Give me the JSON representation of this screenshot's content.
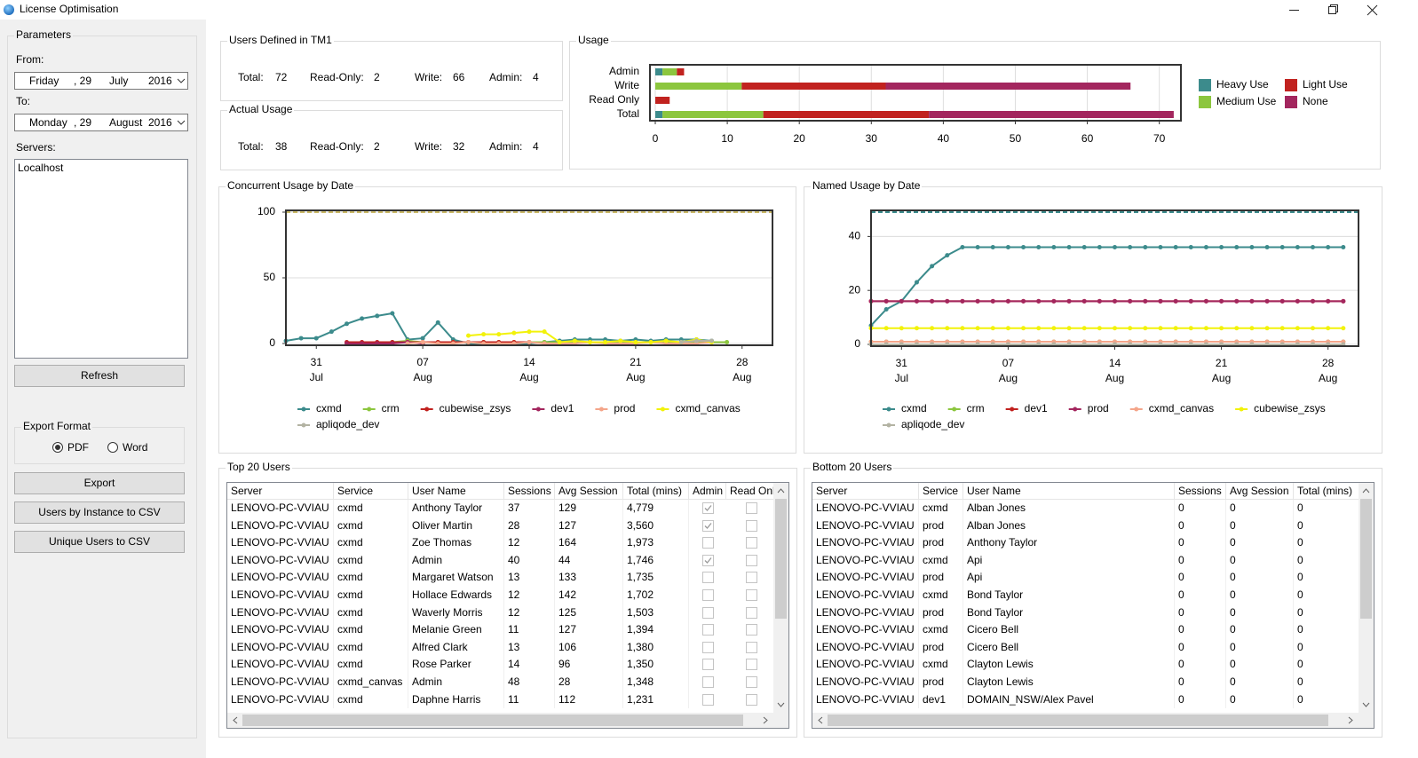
{
  "window": {
    "title": "License Optimisation"
  },
  "parameters": {
    "title": "Parameters",
    "from_label": "From:",
    "from": {
      "weekday": "Friday",
      "day": ", 29",
      "month": "July",
      "year": "2016"
    },
    "to_label": "To:",
    "to": {
      "weekday": "Monday",
      "day": ", 29",
      "month": "August",
      "year": "2016"
    },
    "servers_label": "Servers:",
    "servers": [
      "Localhost"
    ],
    "refresh": "Refresh",
    "export_format": {
      "title": "Export Format",
      "options": [
        "PDF",
        "Word"
      ],
      "selected": "PDF"
    },
    "buttons": [
      "Export",
      "Users by Instance to CSV",
      "Unique Users to CSV"
    ]
  },
  "users_defined": {
    "title": "Users Defined in TM1",
    "fields": [
      {
        "label": "Total:",
        "value": 72
      },
      {
        "label": "Read-Only:",
        "value": 2
      },
      {
        "label": "Write:",
        "value": 66
      },
      {
        "label": "Admin:",
        "value": 4
      }
    ]
  },
  "actual_usage": {
    "title": "Actual Usage",
    "fields": [
      {
        "label": "Total:",
        "value": 38
      },
      {
        "label": "Read-Only:",
        "value": 2
      },
      {
        "label": "Write:",
        "value": 32
      },
      {
        "label": "Admin:",
        "value": 4
      }
    ]
  },
  "chart_data": [
    {
      "type": "bar",
      "orientation": "horizontal",
      "stacked": true,
      "title": "Usage",
      "categories": [
        "Admin",
        "Write",
        "Read Only",
        "Total"
      ],
      "series": [
        {
          "name": "Heavy Use",
          "color": "#3c8b8c",
          "values": [
            1,
            0,
            0,
            1
          ]
        },
        {
          "name": "Medium Use",
          "color": "#8cc63e",
          "values": [
            2,
            12,
            0,
            14
          ]
        },
        {
          "name": "Light Use",
          "color": "#c1221f",
          "values": [
            1,
            20,
            2,
            23
          ]
        },
        {
          "name": "None",
          "color": "#a3265e",
          "values": [
            0,
            34,
            0,
            34
          ]
        }
      ],
      "xlim": [
        0,
        73
      ],
      "xticks": [
        0,
        10,
        20,
        30,
        40,
        50,
        60,
        70
      ],
      "grid": true,
      "legend": "right"
    },
    {
      "type": "line",
      "title": "Concurrent Usage by Date",
      "x": [
        "29 Jul",
        "30 Jul",
        "31 Jul",
        "01 Aug",
        "02 Aug",
        "03 Aug",
        "04 Aug",
        "05 Aug",
        "06 Aug",
        "07 Aug",
        "08 Aug",
        "09 Aug",
        "10 Aug",
        "11 Aug",
        "12 Aug",
        "13 Aug",
        "14 Aug",
        "15 Aug",
        "16 Aug",
        "17 Aug",
        "18 Aug",
        "19 Aug",
        "20 Aug",
        "21 Aug",
        "22 Aug",
        "23 Aug",
        "24 Aug",
        "25 Aug",
        "26 Aug",
        "27 Aug",
        "28 Aug",
        "29 Aug"
      ],
      "xticks": [
        {
          "value": "31 Jul",
          "label": [
            "31",
            "Jul"
          ]
        },
        {
          "value": "07 Aug",
          "label": [
            "07",
            "Aug"
          ]
        },
        {
          "value": "14 Aug",
          "label": [
            "14",
            "Aug"
          ]
        },
        {
          "value": "21 Aug",
          "label": [
            "21",
            "Aug"
          ]
        },
        {
          "value": "28 Aug",
          "label": [
            "28",
            "Aug"
          ]
        }
      ],
      "ylim": [
        0,
        100
      ],
      "yticks": [
        0,
        50,
        100
      ],
      "grid": true,
      "legend": "bottom",
      "limits": [
        {
          "value": 100,
          "color": "#c9b866"
        }
      ],
      "series": [
        {
          "name": "cxmd",
          "color": "#3c8b8c",
          "values": [
            2,
            4,
            4,
            9,
            15,
            19,
            21,
            23,
            3,
            4,
            16,
            3,
            0,
            0,
            0,
            0,
            0,
            1,
            2,
            3,
            3,
            3,
            2,
            3,
            2,
            3,
            3,
            3,
            2,
            null,
            null,
            null
          ]
        },
        {
          "name": "crm",
          "color": "#8cc63e",
          "values": [
            null,
            null,
            null,
            null,
            null,
            null,
            null,
            1,
            2,
            1,
            1,
            1,
            1,
            1,
            1,
            1,
            1,
            1,
            1,
            1,
            1,
            1,
            1,
            1,
            1,
            1,
            1,
            1,
            1,
            1,
            null,
            null
          ]
        },
        {
          "name": "cubewise_zsys",
          "color": "#c1221f",
          "values": [
            null,
            null,
            null,
            null,
            1,
            1,
            1,
            1,
            1,
            1,
            1,
            1,
            1,
            1,
            1,
            1,
            1,
            null,
            null,
            null,
            null,
            null,
            null,
            null,
            null,
            null,
            null,
            null,
            null,
            null,
            null,
            null
          ]
        },
        {
          "name": "dev1",
          "color": "#a3265e",
          "values": [
            null,
            null,
            null,
            null,
            0,
            0,
            0,
            0,
            1,
            0,
            null,
            null,
            null,
            null,
            null,
            null,
            null,
            null,
            null,
            null,
            null,
            null,
            null,
            null,
            null,
            null,
            null,
            null,
            null,
            null,
            null,
            null
          ]
        },
        {
          "name": "prod",
          "color": "#f4a58a",
          "values": [
            null,
            null,
            null,
            null,
            null,
            null,
            null,
            null,
            0,
            1,
            0,
            0,
            1,
            0,
            0,
            0,
            1,
            0,
            0,
            0,
            1,
            0,
            0,
            0,
            1,
            0,
            0,
            0,
            1,
            null,
            null,
            null
          ]
        },
        {
          "name": "cxmd_canvas",
          "color": "#f2f20a",
          "values": [
            null,
            null,
            null,
            null,
            null,
            null,
            null,
            null,
            null,
            null,
            null,
            null,
            6,
            7,
            7,
            8,
            9,
            9,
            1,
            2,
            1,
            1,
            2,
            1,
            1,
            2,
            1,
            3,
            1,
            null,
            null,
            null
          ]
        },
        {
          "name": "apliqode_dev",
          "color": "#b3b3a3",
          "values": [
            null,
            null,
            null,
            null,
            null,
            null,
            null,
            null,
            null,
            null,
            null,
            null,
            null,
            null,
            null,
            null,
            null,
            null,
            null,
            null,
            null,
            null,
            null,
            null,
            null,
            null,
            1,
            2,
            2,
            null,
            null,
            null
          ]
        }
      ]
    },
    {
      "type": "line",
      "title": "Named Usage by Date",
      "x": [
        "29 Jul",
        "30 Jul",
        "31 Jul",
        "01 Aug",
        "02 Aug",
        "03 Aug",
        "04 Aug",
        "05 Aug",
        "06 Aug",
        "07 Aug",
        "08 Aug",
        "09 Aug",
        "10 Aug",
        "11 Aug",
        "12 Aug",
        "13 Aug",
        "14 Aug",
        "15 Aug",
        "16 Aug",
        "17 Aug",
        "18 Aug",
        "19 Aug",
        "20 Aug",
        "21 Aug",
        "22 Aug",
        "23 Aug",
        "24 Aug",
        "25 Aug",
        "26 Aug",
        "27 Aug",
        "28 Aug",
        "29 Aug"
      ],
      "xticks": [
        {
          "value": "31 Jul",
          "label": [
            "31",
            "Jul"
          ]
        },
        {
          "value": "07 Aug",
          "label": [
            "07",
            "Aug"
          ]
        },
        {
          "value": "14 Aug",
          "label": [
            "14",
            "Aug"
          ]
        },
        {
          "value": "21 Aug",
          "label": [
            "21",
            "Aug"
          ]
        },
        {
          "value": "28 Aug",
          "label": [
            "28",
            "Aug"
          ]
        }
      ],
      "ylim": [
        0,
        49
      ],
      "yticks": [
        0,
        20,
        40
      ],
      "grid": true,
      "legend": "bottom",
      "limits": [
        {
          "value": 49,
          "color": "#3c8b8c"
        }
      ],
      "series": [
        {
          "name": "cxmd",
          "color": "#3c8b8c",
          "values": [
            7,
            13,
            16,
            23,
            29,
            33,
            36,
            36,
            36,
            36,
            36,
            36,
            36,
            36,
            36,
            36,
            36,
            36,
            36,
            36,
            36,
            36,
            36,
            36,
            36,
            36,
            36,
            36,
            36,
            36,
            36,
            36
          ]
        },
        {
          "name": "crm",
          "color": "#8cc63e",
          "values": [
            1,
            1,
            1,
            1,
            1,
            1,
            1,
            1,
            1,
            1,
            1,
            1,
            1,
            1,
            1,
            1,
            1,
            1,
            1,
            1,
            1,
            1,
            1,
            1,
            1,
            1,
            1,
            1,
            1,
            1,
            1,
            1
          ]
        },
        {
          "name": "dev1",
          "color": "#c1221f",
          "values": [
            16,
            16,
            16,
            16,
            16,
            16,
            16,
            16,
            16,
            16,
            16,
            16,
            16,
            16,
            16,
            16,
            16,
            16,
            16,
            16,
            16,
            16,
            16,
            16,
            16,
            16,
            16,
            16,
            16,
            16,
            16,
            16
          ]
        },
        {
          "name": "prod",
          "color": "#a3265e",
          "values": [
            16,
            16,
            16,
            16,
            16,
            16,
            16,
            16,
            16,
            16,
            16,
            16,
            16,
            16,
            16,
            16,
            16,
            16,
            16,
            16,
            16,
            16,
            16,
            16,
            16,
            16,
            16,
            16,
            16,
            16,
            16,
            16
          ]
        },
        {
          "name": "cxmd_canvas",
          "color": "#f4a58a",
          "values": [
            1,
            1,
            1,
            1,
            1,
            1,
            1,
            1,
            1,
            1,
            1,
            1,
            1,
            1,
            1,
            1,
            1,
            1,
            1,
            1,
            1,
            1,
            1,
            1,
            1,
            1,
            1,
            1,
            1,
            1,
            1,
            1
          ]
        },
        {
          "name": "cubewise_zsys",
          "color": "#f2f20a",
          "values": [
            6,
            6,
            6,
            6,
            6,
            6,
            6,
            6,
            6,
            6,
            6,
            6,
            6,
            6,
            6,
            6,
            6,
            6,
            6,
            6,
            6,
            6,
            6,
            6,
            6,
            6,
            6,
            6,
            6,
            6,
            6,
            6
          ]
        },
        {
          "name": "apliqode_dev",
          "color": "#b3b3a3",
          "values": [
            0,
            0,
            0,
            0,
            0,
            0,
            0,
            0,
            0,
            0,
            0,
            0,
            0,
            0,
            0,
            0,
            0,
            0,
            0,
            0,
            0,
            0,
            0,
            0,
            0,
            0,
            0,
            0,
            0,
            0,
            0,
            0
          ]
        }
      ]
    }
  ],
  "top_users": {
    "title": "Top 20 Users",
    "columns": [
      "Server",
      "Service",
      "User Name",
      "Sessions",
      "Avg Session",
      "Total (mins)",
      "Admin",
      "Read Only"
    ],
    "rows": [
      [
        "LENOVO-PC-VVIAU",
        "cxmd",
        "Anthony Taylor",
        "37",
        "129",
        "4,779",
        true,
        false
      ],
      [
        "LENOVO-PC-VVIAU",
        "cxmd",
        "Oliver Martin",
        "28",
        "127",
        "3,560",
        true,
        false
      ],
      [
        "LENOVO-PC-VVIAU",
        "cxmd",
        "Zoe Thomas",
        "12",
        "164",
        "1,973",
        false,
        false
      ],
      [
        "LENOVO-PC-VVIAU",
        "cxmd",
        "Admin",
        "40",
        "44",
        "1,746",
        true,
        false
      ],
      [
        "LENOVO-PC-VVIAU",
        "cxmd",
        "Margaret Watson",
        "13",
        "133",
        "1,735",
        false,
        false
      ],
      [
        "LENOVO-PC-VVIAU",
        "cxmd",
        "Hollace Edwards",
        "12",
        "142",
        "1,702",
        false,
        false
      ],
      [
        "LENOVO-PC-VVIAU",
        "cxmd",
        "Waverly Morris",
        "12",
        "125",
        "1,503",
        false,
        false
      ],
      [
        "LENOVO-PC-VVIAU",
        "cxmd",
        "Melanie Green",
        "11",
        "127",
        "1,394",
        false,
        false
      ],
      [
        "LENOVO-PC-VVIAU",
        "cxmd",
        "Alfred Clark",
        "13",
        "106",
        "1,380",
        false,
        false
      ],
      [
        "LENOVO-PC-VVIAU",
        "cxmd",
        "Rose Parker",
        "14",
        "96",
        "1,350",
        false,
        false
      ],
      [
        "LENOVO-PC-VVIAU",
        "cxmd_canvas",
        "Admin",
        "48",
        "28",
        "1,348",
        false,
        false
      ],
      [
        "LENOVO-PC-VVIAU",
        "cxmd",
        "Daphne Harris",
        "11",
        "112",
        "1,231",
        false,
        false
      ]
    ]
  },
  "bottom_users": {
    "title": "Bottom 20 Users",
    "columns": [
      "Server",
      "Service",
      "User Name",
      "Sessions",
      "Avg Session",
      "Total (mins)"
    ],
    "rows": [
      [
        "LENOVO-PC-VVIAU",
        "cxmd",
        "Alban Jones",
        "0",
        "0",
        "0"
      ],
      [
        "LENOVO-PC-VVIAU",
        "prod",
        "Alban Jones",
        "0",
        "0",
        "0"
      ],
      [
        "LENOVO-PC-VVIAU",
        "prod",
        "Anthony Taylor",
        "0",
        "0",
        "0"
      ],
      [
        "LENOVO-PC-VVIAU",
        "cxmd",
        "Api",
        "0",
        "0",
        "0"
      ],
      [
        "LENOVO-PC-VVIAU",
        "prod",
        "Api",
        "0",
        "0",
        "0"
      ],
      [
        "LENOVO-PC-VVIAU",
        "cxmd",
        "Bond Taylor",
        "0",
        "0",
        "0"
      ],
      [
        "LENOVO-PC-VVIAU",
        "prod",
        "Bond Taylor",
        "0",
        "0",
        "0"
      ],
      [
        "LENOVO-PC-VVIAU",
        "cxmd",
        "Cicero Bell",
        "0",
        "0",
        "0"
      ],
      [
        "LENOVO-PC-VVIAU",
        "prod",
        "Cicero Bell",
        "0",
        "0",
        "0"
      ],
      [
        "LENOVO-PC-VVIAU",
        "cxmd",
        "Clayton Lewis",
        "0",
        "0",
        "0"
      ],
      [
        "LENOVO-PC-VVIAU",
        "prod",
        "Clayton Lewis",
        "0",
        "0",
        "0"
      ],
      [
        "LENOVO-PC-VVIAU",
        "dev1",
        "DOMAIN_NSW/Alex Pavel",
        "0",
        "0",
        "0"
      ]
    ]
  }
}
